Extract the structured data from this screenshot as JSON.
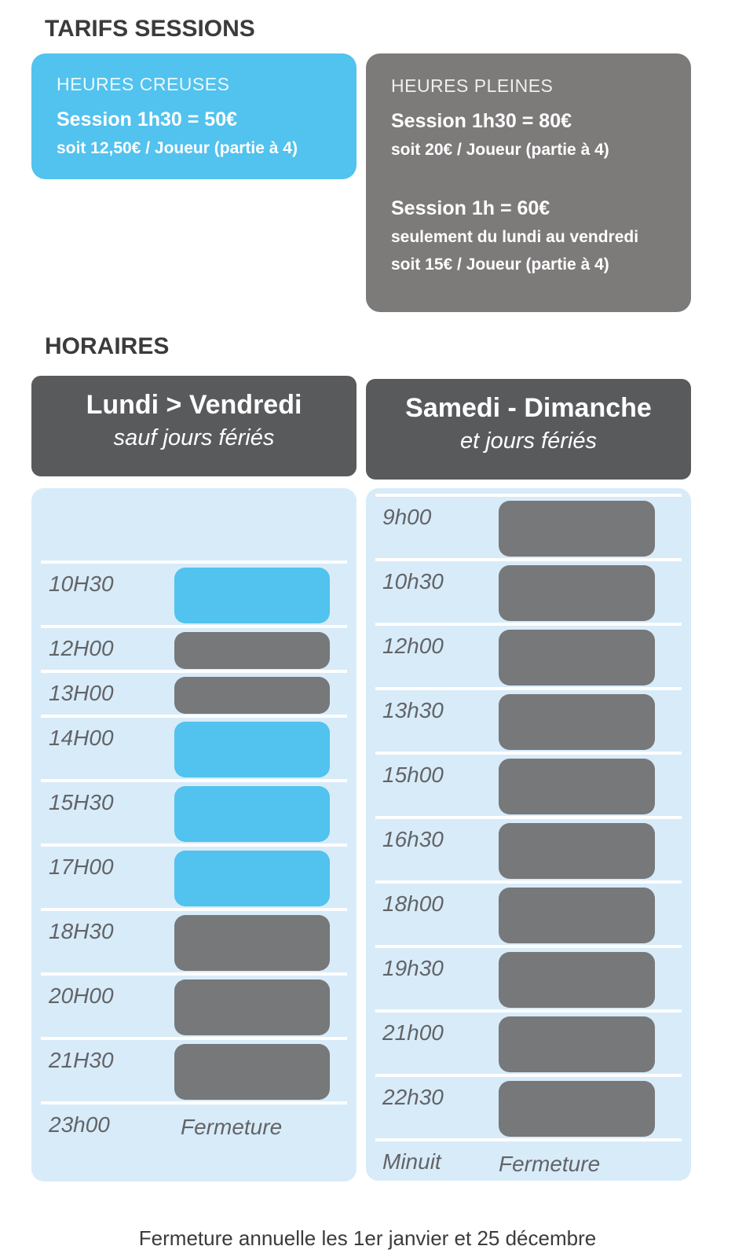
{
  "page": {
    "tarifs_title": "TARIFS SESSIONS",
    "horaires_title": "HORAIRES",
    "footer_note": "Fermeture annuelle les 1er janvier et 25 décembre"
  },
  "colors": {
    "off_peak_blue": "#52C2EE",
    "peak_card_gray": "#7D7A7A",
    "slot_gray": "#77787A",
    "day_header_gray": "#595A5C",
    "panel_light_blue": "#D8EBF9",
    "separator_white": "#FFFFFF",
    "text_dark": "#3B3B3D",
    "time_label_gray": "#626467"
  },
  "cards": {
    "off_peak": {
      "title": "HEURES CREUSES",
      "price_line": "Session 1h30 = 50€",
      "detail_line": "soit 12,50€ / Joueur (partie à 4)"
    },
    "peak": {
      "title": "HEURES PLEINES",
      "offers": [
        {
          "price_line": "Session 1h30 = 80€",
          "details": [
            "soit 20€ / Joueur (partie à 4)"
          ]
        },
        {
          "price_line": "Session 1h = 60€",
          "details": [
            "seulement du lundi au vendredi",
            "soit 15€ / Joueur (partie à 4)"
          ]
        }
      ]
    }
  },
  "schedule": {
    "weekdays": {
      "title": "Lundi > Vendredi",
      "subtitle": "sauf jours fériés",
      "rows": [
        {
          "time": "",
          "type": "empty"
        },
        {
          "time": "10H30",
          "type": "off_peak",
          "duration": "1h30"
        },
        {
          "time": "12H00",
          "type": "peak",
          "duration": "1h"
        },
        {
          "time": "13H00",
          "type": "peak",
          "duration": "1h"
        },
        {
          "time": "14H00",
          "type": "off_peak",
          "duration": "1h30"
        },
        {
          "time": "15H30",
          "type": "off_peak",
          "duration": "1h30"
        },
        {
          "time": "17H00",
          "type": "off_peak",
          "duration": "1h30"
        },
        {
          "time": "18H30",
          "type": "peak",
          "duration": "1h30"
        },
        {
          "time": "20H00",
          "type": "peak",
          "duration": "1h30"
        },
        {
          "time": "21H30",
          "type": "peak",
          "duration": "1h30"
        },
        {
          "time": "23h00",
          "type": "closing",
          "label": "Fermeture"
        }
      ]
    },
    "weekend": {
      "title": "Samedi - Dimanche",
      "subtitle": "et jours fériés",
      "rows": [
        {
          "time": "9h00",
          "type": "peak",
          "duration": "1h30"
        },
        {
          "time": "10h30",
          "type": "peak",
          "duration": "1h30"
        },
        {
          "time": "12h00",
          "type": "peak",
          "duration": "1h30"
        },
        {
          "time": "13h30",
          "type": "peak",
          "duration": "1h30"
        },
        {
          "time": "15h00",
          "type": "peak",
          "duration": "1h30"
        },
        {
          "time": "16h30",
          "type": "peak",
          "duration": "1h30"
        },
        {
          "time": "18h00",
          "type": "peak",
          "duration": "1h30"
        },
        {
          "time": "19h30",
          "type": "peak",
          "duration": "1h30"
        },
        {
          "time": "21h00",
          "type": "peak",
          "duration": "1h30"
        },
        {
          "time": "22h30",
          "type": "peak",
          "duration": "1h30"
        },
        {
          "time": "Minuit",
          "type": "closing",
          "label": "Fermeture"
        }
      ]
    }
  }
}
